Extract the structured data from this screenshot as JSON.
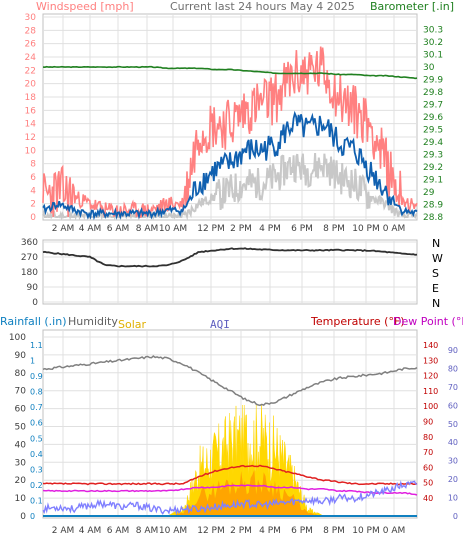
{
  "header": {
    "left_title": "Windspeed [mph]",
    "center_title": "Current last 24 hours May 4 2025",
    "right_title": "Barometer [.in]"
  },
  "bottom_header": {
    "rainfall": "Rainfall (.in)",
    "humidity": "Humidity",
    "solar": "Solar",
    "aqi": "AQI",
    "temperature": "Temperature (°F)",
    "dewpoint": "Dew Point (°F)"
  },
  "colors": {
    "wind_gust": "#ff8080",
    "wind_avg": "#1060b0",
    "wind_gray": "#c8c8c8",
    "barometer": "#208020",
    "direction": "#303030",
    "humidity": "#808080",
    "solar": "#ffd700",
    "solar_inner": "#ff9900",
    "temperature": "#e02020",
    "dewpoint": "#e020e0",
    "aqi": "#8080ff",
    "rain": "#1080c0",
    "grid": "#e0e0e0"
  },
  "x_ticks": [
    "2 AM",
    "4 AM",
    "6 AM",
    "8 AM",
    "10 AM",
    "12 PM",
    "2 PM",
    "4 PM",
    "6 PM",
    "8 PM",
    "10 PM",
    "0 AM"
  ],
  "chart_data": [
    {
      "type": "line",
      "name": "wind_barometer",
      "x": [
        0,
        1,
        2,
        3,
        4,
        5,
        6,
        7,
        8,
        9,
        10,
        11,
        12,
        13,
        14,
        15,
        16,
        17,
        18,
        19,
        20,
        21,
        22,
        23,
        24
      ],
      "y_left_ticks": [
        "0",
        "2",
        "4",
        "6",
        "8",
        "10",
        "12",
        "14",
        "16",
        "18",
        "20",
        "22",
        "24",
        "26",
        "28",
        "30"
      ],
      "y_right_ticks": [
        "28.8",
        "28.9",
        "29",
        "29.1",
        "29.2",
        "29.3",
        "29.4",
        "29.5",
        "29.6",
        "29.7",
        "29.8",
        "29.9",
        "30",
        "30.1",
        "30.2",
        "30.3"
      ],
      "ylim_left": [
        0,
        30
      ],
      "ylim_right": [
        28.8,
        30.4
      ],
      "series": [
        {
          "values": [
            3,
            4,
            3,
            2,
            1,
            1,
            1,
            1,
            2,
            2,
            13,
            14,
            14,
            16,
            17,
            18,
            21,
            22,
            22,
            18,
            16,
            14,
            8,
            3,
            1
          ]
        },
        {
          "values": [
            1,
            2,
            1,
            0.5,
            0.5,
            0.5,
            0.5,
            0.5,
            1,
            1,
            5,
            7,
            8,
            10,
            10,
            11,
            14,
            13,
            14,
            11,
            10,
            7,
            4,
            1,
            0.5
          ]
        },
        {
          "values": [
            0,
            0,
            0,
            0,
            0,
            0,
            0,
            0,
            0,
            0,
            2,
            3,
            4,
            5,
            5,
            6,
            8,
            7,
            8,
            6,
            5,
            3,
            2,
            0,
            0
          ]
        },
        {
          "values": [
            30.0,
            30.0,
            30.0,
            30.0,
            30.0,
            30.0,
            30.0,
            30.0,
            29.99,
            29.99,
            29.99,
            29.98,
            29.98,
            29.97,
            29.96,
            29.95,
            29.95,
            29.95,
            29.95,
            29.94,
            29.94,
            29.93,
            29.93,
            29.92,
            29.91
          ]
        }
      ]
    },
    {
      "type": "line",
      "name": "wind_direction",
      "x": [
        0,
        1,
        2,
        3,
        4,
        5,
        6,
        7,
        8,
        9,
        10,
        11,
        12,
        13,
        14,
        15,
        16,
        17,
        18,
        19,
        20,
        21,
        22,
        23,
        24
      ],
      "y_ticks": [
        "360",
        "270",
        "180",
        "90",
        "0"
      ],
      "y_right_labels": [
        "N",
        "W",
        "S",
        "E",
        "N"
      ],
      "ylim": [
        0,
        360
      ],
      "series": [
        {
          "values": [
            300,
            290,
            280,
            270,
            220,
            215,
            215,
            215,
            220,
            250,
            300,
            310,
            320,
            320,
            315,
            312,
            310,
            310,
            310,
            312,
            310,
            308,
            300,
            290,
            285
          ]
        }
      ]
    },
    {
      "type": "area",
      "name": "rain_humidity_solar_aqi_temp",
      "x": [
        0,
        1,
        2,
        3,
        4,
        5,
        6,
        7,
        8,
        9,
        10,
        11,
        12,
        13,
        14,
        15,
        16,
        17,
        18,
        19,
        20,
        21,
        22,
        23,
        24
      ],
      "y_left_ticks": [
        "0",
        "10",
        "20",
        "30",
        "40",
        "50",
        "60",
        "70",
        "80",
        "90",
        "100"
      ],
      "y_rain_ticks": [
        "0",
        "0.1",
        "0.2",
        "0.3",
        "0.4",
        "0.5",
        "0.6",
        "0.7",
        "0.8",
        "0.9",
        "1",
        "1.1"
      ],
      "y_temp_ticks": [
        "40",
        "50",
        "60",
        "70",
        "80",
        "90",
        "100",
        "110",
        "120",
        "130",
        "140"
      ],
      "y_aqi_ticks": [
        "0",
        "10",
        "20",
        "30",
        "40",
        "50",
        "60",
        "70",
        "80",
        "90"
      ],
      "ylim_left": [
        0,
        100
      ],
      "series": [
        {
          "values": [
            82,
            83,
            84,
            85,
            86,
            87,
            88,
            89,
            88,
            85,
            80,
            75,
            70,
            65,
            62,
            64,
            68,
            72,
            75,
            77,
            78,
            79,
            80,
            82,
            83
          ]
        },
        {
          "values": [
            0,
            0,
            0,
            0,
            0,
            0,
            0,
            0,
            0,
            5,
            35,
            45,
            55,
            60,
            58,
            50,
            30,
            5,
            0,
            0,
            0,
            0,
            0,
            0,
            0
          ]
        },
        {
          "values": [
            18,
            18,
            18,
            18,
            18,
            18,
            18,
            18,
            18,
            18,
            22,
            25,
            27,
            28,
            28,
            26,
            24,
            22,
            20,
            19,
            18,
            18,
            18,
            18,
            18
          ]
        },
        {
          "values": [
            14,
            14,
            14,
            14,
            14,
            14,
            14,
            14,
            14,
            15,
            16,
            16,
            17,
            17,
            17,
            16,
            16,
            15,
            15,
            14,
            14,
            13,
            13,
            13,
            12
          ]
        },
        {
          "values": [
            4,
            5,
            4,
            6,
            7,
            5,
            6,
            4,
            3,
            4,
            4,
            5,
            6,
            7,
            6,
            7,
            8,
            9,
            8,
            10,
            10,
            12,
            14,
            17,
            18
          ]
        }
      ]
    }
  ]
}
